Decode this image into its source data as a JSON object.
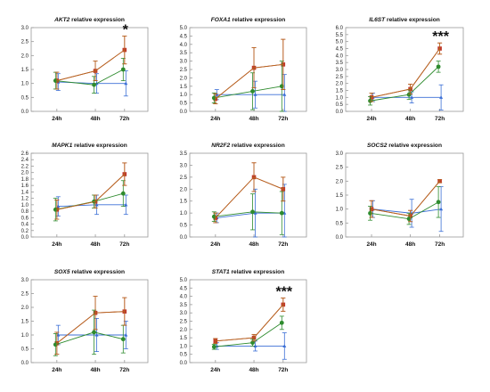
{
  "chart_data": [
    {
      "type": "line",
      "gene": "AKT2",
      "title_suffix": " relative expression",
      "categories": [
        "24h",
        "48h",
        "72h"
      ],
      "ylim": [
        0,
        3
      ],
      "yticks": [
        0.0,
        0.5,
        1.0,
        1.5,
        2.0,
        2.5,
        3.0
      ],
      "tick_decimals": 1,
      "significance": "*",
      "significance_x": 2,
      "series": [
        {
          "color": "#3b6fd6",
          "marker": "triangle",
          "values": [
            1.05,
            1.0,
            1.0
          ],
          "errors": [
            0.3,
            0.35,
            0.45
          ]
        },
        {
          "color": "#c0392b",
          "marker": "square",
          "values": [
            1.1,
            1.45,
            2.2
          ],
          "errors": [
            0.3,
            0.35,
            0.5
          ]
        },
        {
          "color": "#2e8b2e",
          "marker": "circle",
          "values": [
            1.1,
            0.95,
            1.5
          ],
          "errors": [
            0.3,
            0.3,
            0.4
          ]
        },
        {
          "color": "#b5651d",
          "marker": "none",
          "values": [
            1.1,
            1.45,
            2.2
          ],
          "errors": [
            0.3,
            0.35,
            0.5
          ]
        }
      ]
    },
    {
      "type": "line",
      "gene": "FOXA1",
      "title_suffix": " relative expression",
      "categories": [
        "24h",
        "48h",
        "72h"
      ],
      "ylim": [
        0,
        5
      ],
      "yticks": [
        0.0,
        0.5,
        1.0,
        1.5,
        2.0,
        2.5,
        3.0,
        3.5,
        4.0,
        4.5,
        5.0
      ],
      "tick_decimals": 1,
      "significance": "",
      "significance_x": 2,
      "series": [
        {
          "color": "#3b6fd6",
          "marker": "triangle",
          "values": [
            1.0,
            1.0,
            1.0
          ],
          "errors": [
            0.3,
            0.8,
            1.2
          ]
        },
        {
          "color": "#c0392b",
          "marker": "square",
          "values": [
            0.75,
            2.6,
            2.8
          ],
          "errors": [
            0.3,
            1.2,
            1.5
          ]
        },
        {
          "color": "#2e8b2e",
          "marker": "circle",
          "values": [
            0.8,
            1.2,
            1.5
          ],
          "errors": [
            0.3,
            1.1,
            1.5
          ]
        },
        {
          "color": "#b5651d",
          "marker": "none",
          "values": [
            0.75,
            2.6,
            2.8
          ],
          "errors": [
            0.3,
            1.2,
            1.5
          ]
        }
      ]
    },
    {
      "type": "line",
      "gene": "IL6ST",
      "title_suffix": " relative expression",
      "categories": [
        "24h",
        "48h",
        "72h"
      ],
      "ylim": [
        0,
        6
      ],
      "yticks": [
        0.0,
        0.5,
        1.0,
        1.5,
        2.0,
        2.5,
        3.0,
        3.5,
        4.0,
        4.5,
        5.0,
        5.5,
        6.0
      ],
      "tick_decimals": 1,
      "significance": "***",
      "significance_x": 2,
      "series": [
        {
          "color": "#3b6fd6",
          "marker": "triangle",
          "values": [
            1.0,
            1.0,
            1.0
          ],
          "errors": [
            0.3,
            0.4,
            0.9
          ]
        },
        {
          "color": "#c0392b",
          "marker": "square",
          "values": [
            1.0,
            1.6,
            4.5
          ],
          "errors": [
            0.3,
            0.35,
            0.4
          ]
        },
        {
          "color": "#2e8b2e",
          "marker": "circle",
          "values": [
            0.75,
            1.2,
            3.2
          ],
          "errors": [
            0.3,
            0.35,
            0.4
          ]
        },
        {
          "color": "#b5651d",
          "marker": "none",
          "values": [
            1.0,
            1.6,
            4.5
          ],
          "errors": [
            0.3,
            0.35,
            0.4
          ]
        }
      ]
    },
    {
      "type": "line",
      "gene": "MAPK1",
      "title_suffix": " relative expression",
      "categories": [
        "24h",
        "48h",
        "72h"
      ],
      "ylim": [
        0,
        2.6
      ],
      "yticks": [
        0.0,
        0.2,
        0.4,
        0.6,
        0.8,
        1.0,
        1.2,
        1.4,
        1.6,
        1.8,
        2.0,
        2.2,
        2.4,
        2.6
      ],
      "tick_decimals": 1,
      "significance": "",
      "significance_x": 2,
      "series": [
        {
          "color": "#3b6fd6",
          "marker": "triangle",
          "values": [
            0.95,
            1.0,
            1.0
          ],
          "errors": [
            0.3,
            0.3,
            0.3
          ]
        },
        {
          "color": "#c0392b",
          "marker": "square",
          "values": [
            0.85,
            1.1,
            1.95
          ],
          "errors": [
            0.3,
            0.2,
            0.35
          ]
        },
        {
          "color": "#2e8b2e",
          "marker": "circle",
          "values": [
            0.85,
            1.1,
            1.35
          ],
          "errors": [
            0.35,
            0.2,
            0.4
          ]
        },
        {
          "color": "#b5651d",
          "marker": "none",
          "values": [
            0.85,
            1.1,
            1.95
          ],
          "errors": [
            0.3,
            0.2,
            0.35
          ]
        }
      ]
    },
    {
      "type": "line",
      "gene": "NR2F2",
      "title_suffix": " relative expression",
      "categories": [
        "24h",
        "48h",
        "72h"
      ],
      "ylim": [
        0,
        3.5
      ],
      "yticks": [
        0.0,
        0.5,
        1.0,
        1.5,
        2.0,
        2.5,
        3.0,
        3.5
      ],
      "tick_decimals": 1,
      "significance": "",
      "significance_x": 2,
      "series": [
        {
          "color": "#3b6fd6",
          "marker": "triangle",
          "values": [
            0.8,
            1.0,
            1.0
          ],
          "errors": [
            0.2,
            1.0,
            1.2
          ]
        },
        {
          "color": "#c0392b",
          "marker": "square",
          "values": [
            0.8,
            2.5,
            2.0
          ],
          "errors": [
            0.2,
            0.6,
            0.5
          ]
        },
        {
          "color": "#2e8b2e",
          "marker": "circle",
          "values": [
            0.85,
            1.05,
            1.0
          ],
          "errors": [
            0.2,
            0.75,
            0.9
          ]
        },
        {
          "color": "#b5651d",
          "marker": "none",
          "values": [
            0.8,
            2.5,
            2.0
          ],
          "errors": [
            0.2,
            0.6,
            0.5
          ]
        }
      ]
    },
    {
      "type": "line",
      "gene": "SOCS2",
      "title_suffix": " relative expression",
      "categories": [
        "24h",
        "48h",
        "72h"
      ],
      "ylim": [
        0,
        3
      ],
      "yticks": [
        0.0,
        0.5,
        1.0,
        1.5,
        2.0,
        2.5,
        3.0
      ],
      "tick_decimals": 1,
      "significance": "",
      "significance_x": 2,
      "series": [
        {
          "color": "#3b6fd6",
          "marker": "triangle",
          "values": [
            1.0,
            0.85,
            1.0
          ],
          "errors": [
            0.3,
            0.5,
            0.8
          ]
        },
        {
          "color": "#c0392b",
          "marker": "square",
          "values": [
            1.0,
            0.75,
            2.0
          ],
          "errors": [
            0.3,
            0.2,
            0.05
          ]
        },
        {
          "color": "#2e8b2e",
          "marker": "circle",
          "values": [
            0.85,
            0.65,
            1.25
          ],
          "errors": [
            0.25,
            0.2,
            0.55
          ]
        },
        {
          "color": "#b5651d",
          "marker": "none",
          "values": [
            1.0,
            0.75,
            2.0
          ],
          "errors": [
            0.3,
            0.2,
            0.05
          ]
        }
      ]
    },
    {
      "type": "line",
      "gene": "SOX5",
      "title_suffix": " relative expression",
      "categories": [
        "24h",
        "48h",
        "72h"
      ],
      "ylim": [
        0,
        3
      ],
      "yticks": [
        0.0,
        0.5,
        1.0,
        1.5,
        2.0,
        2.5,
        3.0
      ],
      "tick_decimals": 1,
      "significance": "",
      "significance_x": 2,
      "series": [
        {
          "color": "#3b6fd6",
          "marker": "triangle",
          "values": [
            1.0,
            1.0,
            1.0
          ],
          "errors": [
            0.35,
            0.6,
            0.5
          ]
        },
        {
          "color": "#c0392b",
          "marker": "square",
          "values": [
            0.7,
            1.8,
            1.85
          ],
          "errors": [
            0.4,
            0.6,
            0.5
          ]
        },
        {
          "color": "#2e8b2e",
          "marker": "circle",
          "values": [
            0.65,
            1.1,
            0.85
          ],
          "errors": [
            0.4,
            0.8,
            0.5
          ]
        },
        {
          "color": "#b5651d",
          "marker": "none",
          "values": [
            0.7,
            1.8,
            1.85
          ],
          "errors": [
            0.4,
            0.6,
            0.5
          ]
        }
      ]
    },
    {
      "type": "line",
      "gene": "STAT1",
      "title_suffix": " relative expression",
      "categories": [
        "24h",
        "48h",
        "72h"
      ],
      "ylim": [
        0,
        5
      ],
      "yticks": [
        0.0,
        0.5,
        1.0,
        1.5,
        2.0,
        2.5,
        3.0,
        3.5,
        4.0,
        4.5,
        5.0
      ],
      "tick_decimals": 1,
      "significance": "***",
      "significance_x": 2,
      "series": [
        {
          "color": "#3b6fd6",
          "marker": "triangle",
          "values": [
            1.0,
            1.0,
            1.0
          ],
          "errors": [
            0.2,
            0.3,
            0.8
          ]
        },
        {
          "color": "#c0392b",
          "marker": "square",
          "values": [
            1.3,
            1.5,
            3.5
          ],
          "errors": [
            0.15,
            0.2,
            0.4
          ]
        },
        {
          "color": "#2e8b2e",
          "marker": "circle",
          "values": [
            0.95,
            1.2,
            2.4
          ],
          "errors": [
            0.15,
            0.2,
            0.4
          ]
        },
        {
          "color": "#b5651d",
          "marker": "none",
          "values": [
            1.3,
            1.5,
            3.5
          ],
          "errors": [
            0.15,
            0.2,
            0.4
          ]
        }
      ]
    }
  ]
}
